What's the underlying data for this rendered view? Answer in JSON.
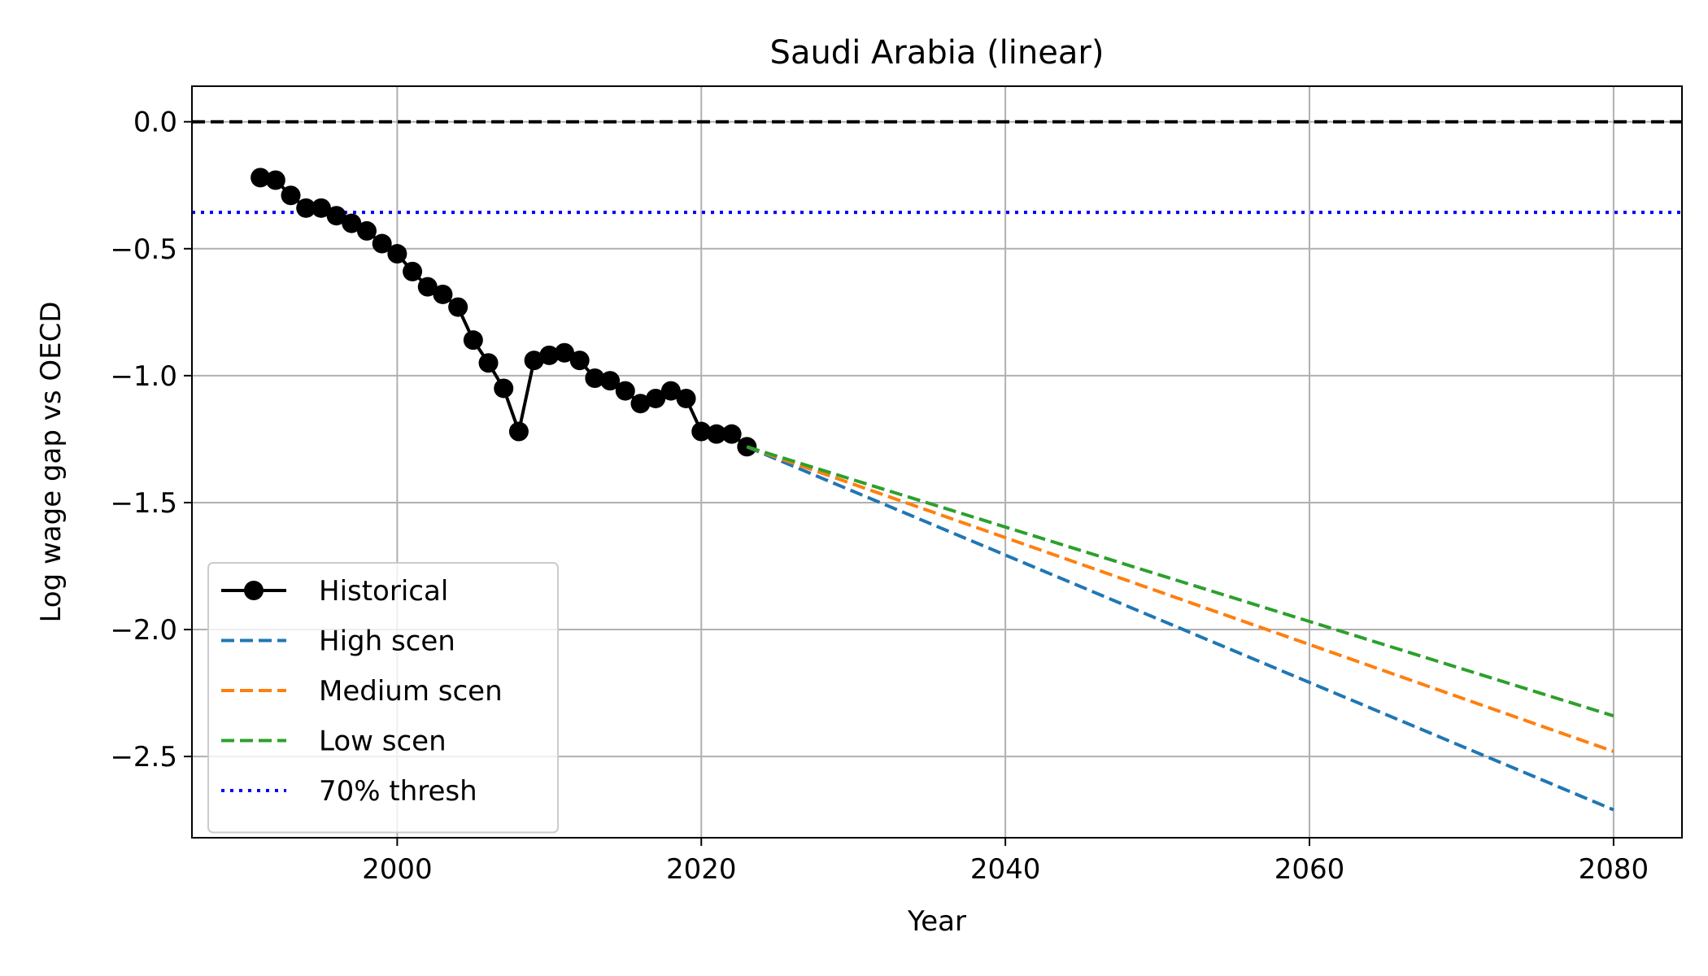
{
  "chart_data": {
    "type": "line",
    "title": "Saudi Arabia (linear)",
    "xlabel": "Year",
    "ylabel": "Log wage gap vs OECD",
    "xlim": [
      1986.5,
      2084.5
    ],
    "ylim": [
      -2.82,
      0.14
    ],
    "x_ticks": [
      2000,
      2020,
      2040,
      2060,
      2080
    ],
    "x_tick_labels": [
      "2000",
      "2020",
      "2040",
      "2060",
      "2080"
    ],
    "y_ticks": [
      0.0,
      -0.5,
      -1.0,
      -1.5,
      -2.0,
      -2.5
    ],
    "y_tick_labels": [
      "0.0",
      "−0.5",
      "−1.0",
      "−1.5",
      "−2.0",
      "−2.5"
    ],
    "grid": true,
    "legend_position": "lower-left",
    "series": [
      {
        "name": "Historical",
        "color": "#000000",
        "style": "solid-marker",
        "x": [
          1991,
          1992,
          1993,
          1994,
          1995,
          1996,
          1997,
          1998,
          1999,
          2000,
          2001,
          2002,
          2003,
          2004,
          2005,
          2006,
          2007,
          2008,
          2009,
          2010,
          2011,
          2012,
          2013,
          2014,
          2015,
          2016,
          2017,
          2018,
          2019,
          2020,
          2021,
          2022,
          2023
        ],
        "y": [
          -0.22,
          -0.23,
          -0.29,
          -0.34,
          -0.34,
          -0.37,
          -0.4,
          -0.43,
          -0.48,
          -0.52,
          -0.59,
          -0.65,
          -0.68,
          -0.73,
          -0.86,
          -0.95,
          -1.05,
          -1.22,
          -0.94,
          -0.92,
          -0.91,
          -0.94,
          -1.01,
          -1.02,
          -1.06,
          -1.11,
          -1.09,
          -1.06,
          -1.09,
          -1.22,
          -1.23,
          -1.23,
          -1.28
        ]
      },
      {
        "name": "High scen",
        "color": "#1f77b4",
        "style": "dashed",
        "x": [
          2023,
          2080
        ],
        "y": [
          -1.28,
          -2.71
        ]
      },
      {
        "name": "Medium scen",
        "color": "#ff7f0e",
        "style": "dashed",
        "x": [
          2023,
          2080
        ],
        "y": [
          -1.28,
          -2.48
        ]
      },
      {
        "name": "Low scen",
        "color": "#2ca02c",
        "style": "dashed",
        "x": [
          2023,
          2080
        ],
        "y": [
          -1.28,
          -2.34
        ]
      }
    ],
    "reference_lines": [
      {
        "name": "zero",
        "y": 0.0,
        "color": "#000000",
        "style": "dashed"
      },
      {
        "name": "70% thresh",
        "y": -0.357,
        "color": "#0000ff",
        "style": "dotted"
      }
    ],
    "legend": [
      {
        "label": "Historical",
        "color": "#000000",
        "style": "solid-marker"
      },
      {
        "label": "High scen",
        "color": "#1f77b4",
        "style": "dashed"
      },
      {
        "label": "Medium scen",
        "color": "#ff7f0e",
        "style": "dashed"
      },
      {
        "label": "Low scen",
        "color": "#2ca02c",
        "style": "dashed"
      },
      {
        "label": "70% thresh",
        "color": "#0000ff",
        "style": "dotted"
      }
    ]
  }
}
